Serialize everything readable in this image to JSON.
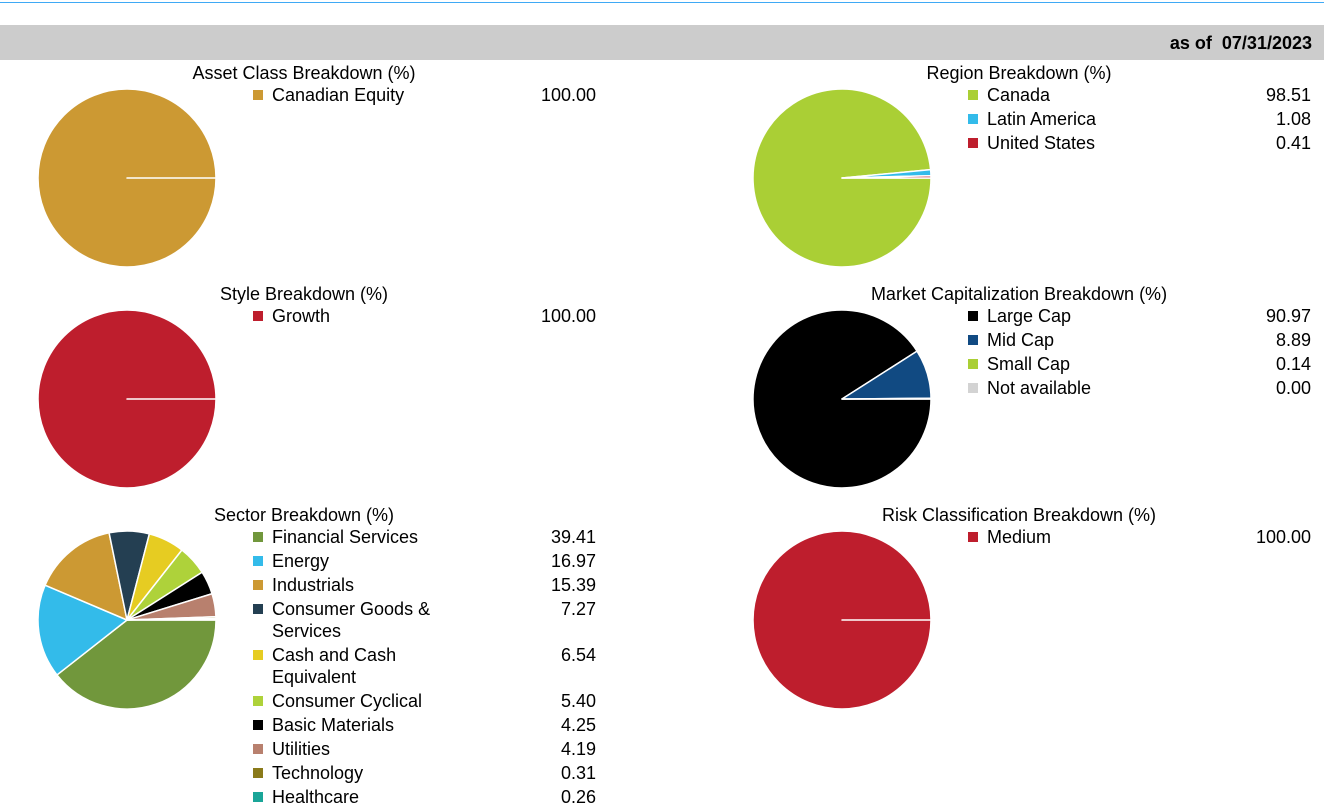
{
  "header": {
    "as_of": "as of  07/31/2023"
  },
  "chart_data": [
    {
      "type": "pie",
      "title": "Asset Class Breakdown (%)",
      "categories": [
        "Canadian Equity"
      ],
      "values": [
        100
      ],
      "value_labels": [
        "100.00"
      ],
      "colors": [
        "#cc9933"
      ]
    },
    {
      "type": "pie",
      "title": "Region Breakdown (%)",
      "categories": [
        "Canada",
        "Latin America",
        "United States"
      ],
      "values": [
        98.51,
        1.08,
        0.41
      ],
      "colors": [
        "#aacf35",
        "#33bbea",
        "#be1e2d"
      ]
    },
    {
      "type": "pie",
      "title": "Style Breakdown (%)",
      "categories": [
        "Growth"
      ],
      "values": [
        100
      ],
      "value_labels": [
        "100.00"
      ],
      "colors": [
        "#be1e2d"
      ]
    },
    {
      "type": "pie",
      "title": "Market Capitalization Breakdown (%)",
      "categories": [
        "Large Cap",
        "Mid Cap",
        "Small Cap",
        "Not available"
      ],
      "values": [
        90.97,
        8.89,
        0.14,
        0
      ],
      "value_labels": [
        "90.97",
        "8.89",
        "0.14",
        "0.00"
      ],
      "colors": [
        "#000000",
        "#114a82",
        "#aacf35",
        "#d3d3d3"
      ]
    },
    {
      "type": "pie",
      "title": "Sector Breakdown (%)",
      "categories": [
        "Financial Services",
        "Energy",
        "Industrials",
        "Consumer Goods & Services",
        "Cash and Cash Equivalent",
        "Consumer Cyclical",
        "Basic Materials",
        "Utilities",
        "Technology",
        "Healthcare"
      ],
      "values": [
        39.41,
        16.97,
        15.39,
        7.27,
        6.54,
        5.4,
        4.25,
        4.19,
        0.31,
        0.26
      ],
      "value_labels": [
        "39.41",
        "16.97",
        "15.39",
        "7.27",
        "6.54",
        "5.40",
        "4.25",
        "4.19",
        "0.31",
        "0.26"
      ],
      "colors": [
        "#71973c",
        "#33bbea",
        "#cc9933",
        "#243f52",
        "#e6cc22",
        "#aed23a",
        "#000000",
        "#b8806e",
        "#8a7a1a",
        "#1aa598"
      ]
    },
    {
      "type": "pie",
      "title": "Risk Classification Breakdown (%)",
      "categories": [
        "Medium"
      ],
      "values": [
        100
      ],
      "value_labels": [
        "100.00"
      ],
      "colors": [
        "#be1e2d"
      ]
    }
  ]
}
